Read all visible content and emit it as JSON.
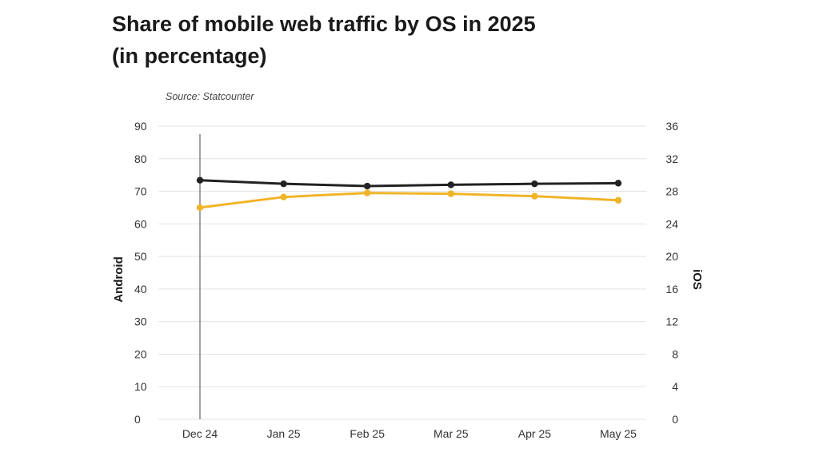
{
  "chart_data": {
    "type": "line",
    "title": "Share of mobile web traffic by OS in 2025",
    "subtitle": "(in percentage)",
    "source": "Source: Statcounter",
    "categories": [
      "Dec 24",
      "Jan 25",
      "Feb 25",
      "Mar 25",
      "Apr 25",
      "May 25"
    ],
    "left_axis": {
      "label": "Android",
      "min": 0,
      "max": 90,
      "ticks": [
        0,
        10,
        20,
        30,
        40,
        50,
        60,
        70,
        80,
        90
      ]
    },
    "right_axis": {
      "label": "iOS",
      "min": 0,
      "max": 36,
      "ticks": [
        0,
        4,
        8,
        12,
        16,
        20,
        24,
        28,
        32,
        36
      ]
    },
    "series": [
      {
        "axis": "left",
        "color": "#222222",
        "values": [
          73.4,
          72.3,
          71.6,
          72.0,
          72.3,
          72.5
        ]
      },
      {
        "axis": "right",
        "color": "#f0b429",
        "values": [
          26.0,
          27.3,
          27.8,
          27.7,
          27.4,
          26.9
        ]
      }
    ],
    "grid": true
  }
}
